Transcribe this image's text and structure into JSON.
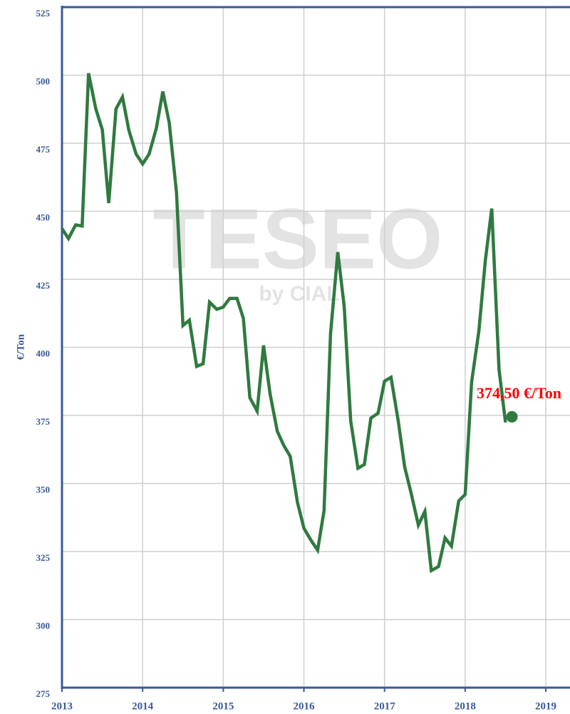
{
  "chart_data": {
    "type": "line",
    "y_label": "€/Ton",
    "watermark": "TESEO",
    "watermark_sub": "by CIAL",
    "x": [
      2013,
      2013.08,
      2013.17,
      2013.25,
      2013.33,
      2013.42,
      2013.5,
      2013.58,
      2013.67,
      2013.75,
      2013.83,
      2013.92,
      2014,
      2014.08,
      2014.17,
      2014.25,
      2014.33,
      2014.42,
      2014.5,
      2014.58,
      2014.67,
      2014.75,
      2014.83,
      2014.92,
      2015,
      2015.08,
      2015.17,
      2015.25,
      2015.33,
      2015.42,
      2015.5,
      2015.58,
      2015.67,
      2015.75,
      2015.83,
      2015.92,
      2016,
      2016.08,
      2016.17,
      2016.25,
      2016.33,
      2016.42,
      2016.5,
      2016.58,
      2016.67,
      2016.75,
      2016.83,
      2016.92,
      2017,
      2017.08,
      2017.17,
      2017.25,
      2017.33,
      2017.42,
      2017.5,
      2017.58,
      2017.67,
      2017.75,
      2017.83,
      2017.92,
      2018,
      2018.08,
      2018.17,
      2018.25,
      2018.33,
      2018.42,
      2018.5
    ],
    "series": [
      {
        "color": "#2f7a3f",
        "values": [
          443.6,
          440,
          445,
          444.6,
          500.7,
          487.6,
          480,
          453,
          487.6,
          492,
          479.7,
          471,
          467.4,
          471,
          480.5,
          494,
          482.6,
          457,
          408,
          410,
          393,
          394,
          416.6,
          414,
          414.8,
          418,
          418,
          410.6,
          381.5,
          376.6,
          400.7,
          383,
          369.2,
          364,
          360,
          343,
          333.6,
          329.5,
          325.5,
          340,
          405,
          435,
          415,
          373,
          355.6,
          357,
          374,
          375.8,
          387.6,
          389,
          373,
          356,
          346.5,
          334.7,
          339.7,
          318,
          319.5,
          330,
          327,
          343.6,
          346,
          387.3,
          406,
          432,
          451,
          391.8,
          372.4
        ]
      }
    ],
    "last_point": {
      "x": 2018.58,
      "value": 374.5,
      "label": "374,50 €/Ton",
      "color": "#2f7a3f",
      "label_color": "#ff0000"
    },
    "xlim": [
      2013,
      2019.3
    ],
    "xticks": [
      2013,
      2014,
      2015,
      2016,
      2017,
      2018,
      2019
    ],
    "ylim": [
      275,
      525
    ],
    "yticks": [
      275,
      300,
      325,
      350,
      375,
      400,
      425,
      450,
      475,
      500,
      525
    ],
    "grid": true
  }
}
